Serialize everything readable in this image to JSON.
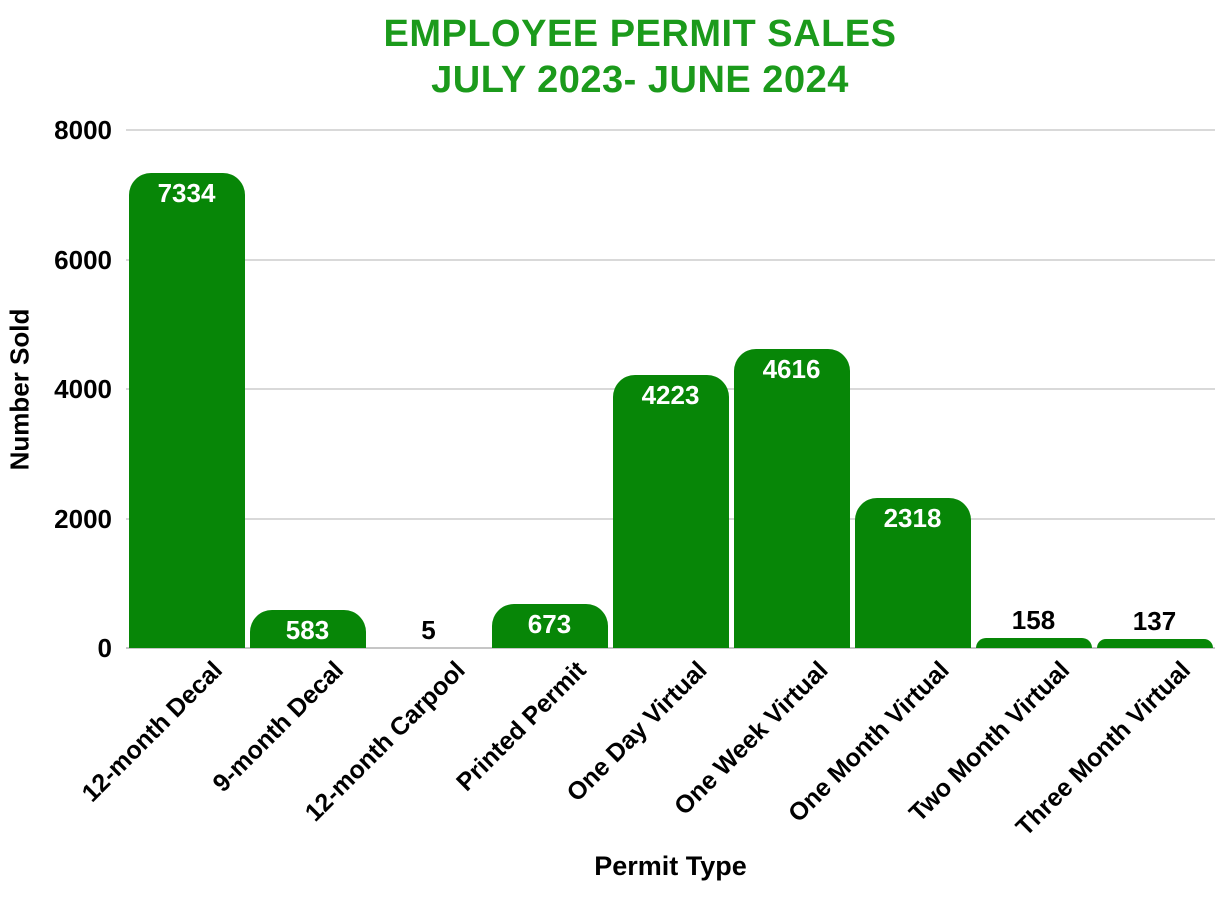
{
  "title": {
    "line1": "EMPLOYEE PERMIT SALES",
    "line2": "JULY 2023- JUNE 2024"
  },
  "chart_data": {
    "type": "bar",
    "title": "EMPLOYEE PERMIT SALES JULY 2023- JUNE 2024",
    "categories": [
      "12-month Decal",
      "9-month Decal",
      "12-month Carpool",
      "Printed Permit",
      "One Day Virtual",
      "One Week Virtual",
      "One Month Virtual",
      "Two Month Virtual",
      "Three Month Virtual"
    ],
    "values": [
      7334,
      583,
      5,
      673,
      4223,
      4616,
      2318,
      158,
      137
    ],
    "xlabel": "Permit Type",
    "ylabel": "Number Sold",
    "ylim": [
      0,
      8000
    ],
    "yticks": [
      0,
      2000,
      4000,
      6000,
      8000
    ],
    "grid": "horizontal",
    "legend": "none",
    "colors": {
      "bar": "#078607",
      "title": "#1b9a1b",
      "value_label_inside": "#ffffff",
      "value_label_outside": "#000000",
      "axis_text": "#000000",
      "gridline": "#d9d9d9",
      "baseline": "#c6c6c6",
      "background": "#ffffff"
    }
  }
}
